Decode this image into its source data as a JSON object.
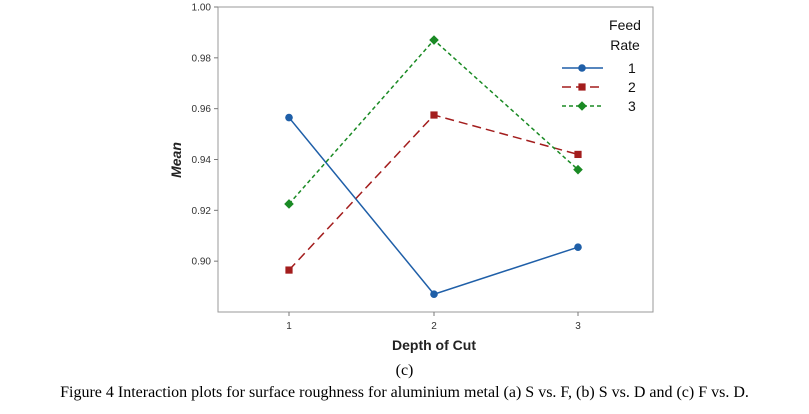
{
  "chart_data": {
    "type": "line",
    "xlabel": "Depth of Cut",
    "ylabel": "Mean",
    "categories": [
      "1",
      "2",
      "3"
    ],
    "ylim": [
      0.88,
      1.0
    ],
    "yticks": [
      "0.90",
      "0.92",
      "0.94",
      "0.96",
      "0.98",
      "1.00"
    ],
    "legend_title_line1": "Feed",
    "legend_title_line2": "Rate",
    "legend_position": "top-right",
    "grid": false,
    "series": [
      {
        "name": "1",
        "values": [
          0.9565,
          0.887,
          0.9055
        ],
        "color": "#1f5fa8",
        "marker": "circle",
        "dash": "solid"
      },
      {
        "name": "2",
        "values": [
          0.8965,
          0.9575,
          0.942
        ],
        "color": "#a31d1d",
        "marker": "square",
        "dash": "long-dash"
      },
      {
        "name": "3",
        "values": [
          0.9225,
          0.987,
          0.936
        ],
        "color": "#1a8a24",
        "marker": "diamond",
        "dash": "short-dash"
      }
    ]
  },
  "panel_label": "(c)",
  "caption": "Figure 4 Interaction plots for surface roughness for aluminium metal (a) S vs. F, (b) S vs. D and (c) F vs. D."
}
